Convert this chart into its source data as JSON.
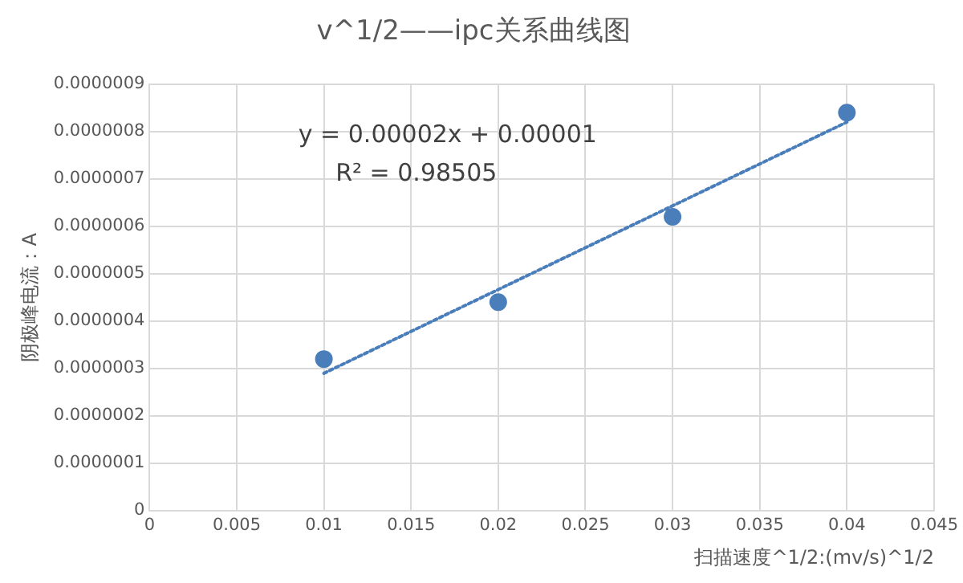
{
  "chart_data": {
    "type": "scatter",
    "title": "v^1/2——ipc关系曲线图",
    "xlabel": "扫描速度^1/2:(mv/s)^1/2",
    "ylabel": "阴极峰电流：A",
    "x": [
      0.01,
      0.02,
      0.03,
      0.04
    ],
    "series": [
      {
        "type": "scatter",
        "color": "#4a7ebb",
        "values": [
          3.2e-07,
          4.4e-07,
          6.2e-07,
          8.4e-07
        ],
        "marker": "circle"
      },
      {
        "type": "line",
        "color": "#4a7ebb",
        "x": [
          0.01,
          0.04
        ],
        "values": [
          2.9e-07,
          8.2e-07
        ],
        "line_style": "dotted",
        "marker": "none"
      }
    ],
    "xlim": [
      0,
      0.045
    ],
    "xticks": [
      0,
      0.005,
      0.01,
      0.015,
      0.02,
      0.025,
      0.03,
      0.035,
      0.04,
      0.045
    ],
    "ylim": [
      0,
      9e-07
    ],
    "yticks": [
      0,
      {
        "value": 1e-07,
        "label": "0.0000001"
      },
      {
        "value": 2e-07,
        "label": "0.0000002"
      },
      {
        "value": 3e-07,
        "label": "0.0000003"
      },
      {
        "value": 4e-07,
        "label": "0.0000004"
      },
      {
        "value": 5e-07,
        "label": "0.0000005"
      },
      {
        "value": 6e-07,
        "label": "0.0000006"
      },
      {
        "value": 7e-07,
        "label": "0.0000007"
      },
      {
        "value": 8e-07,
        "label": "0.0000008"
      },
      {
        "value": 9e-07,
        "label": "0.0000009"
      }
    ],
    "annotations": [
      "y = 0.00002x + 0.00001",
      "R² = 0.98505"
    ],
    "grid": true,
    "legend": false
  }
}
